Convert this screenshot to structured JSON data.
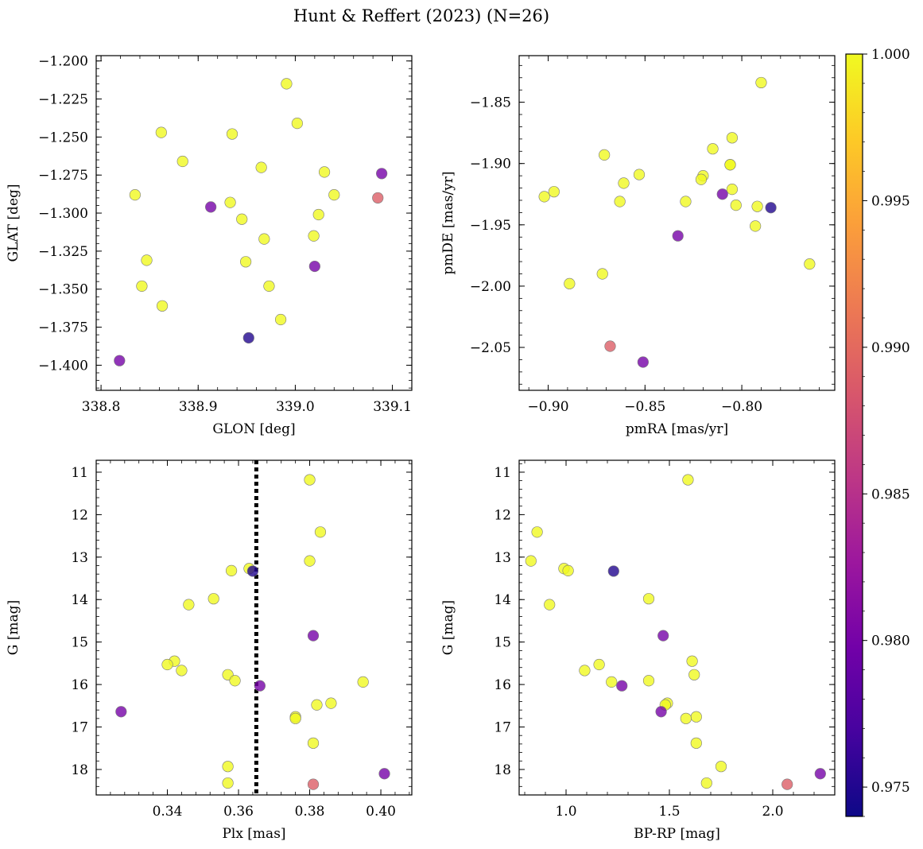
{
  "figure": {
    "title": "Hunt & Reffert (2023) (N=26)"
  },
  "colormap": [
    "#0d0887",
    "#46039f",
    "#7201a8",
    "#9c179e",
    "#bd3786",
    "#d8576b",
    "#ed7953",
    "#fb9f3a",
    "#fdca26",
    "#f0f921"
  ],
  "colorbar": {
    "min": 0.974,
    "max": 1.0,
    "ticks": [
      0.975,
      0.98,
      0.985,
      0.99,
      0.995,
      1.0
    ],
    "tick_labels": [
      "0.975",
      "0.980",
      "0.985",
      "0.990",
      "0.995",
      "1.000"
    ]
  },
  "chart_data": [
    {
      "type": "scatter",
      "xlabel": "GLON [deg]",
      "ylabel": "GLAT [deg]",
      "xlim": [
        338.795,
        339.12
      ],
      "ylim": [
        -1.4165,
        -1.1965
      ],
      "y_inverted": false,
      "xticks": [
        338.8,
        338.9,
        339.0,
        339.1
      ],
      "xtick_labels": [
        "338.8",
        "338.9",
        "339.0",
        "339.1"
      ],
      "yticks": [
        -1.2,
        -1.225,
        -1.25,
        -1.275,
        -1.3,
        -1.325,
        -1.35,
        -1.375,
        -1.4
      ],
      "ytick_labels": [
        "−1.200",
        "−1.225",
        "−1.250",
        "−1.275",
        "−1.300",
        "−1.325",
        "−1.350",
        "−1.375",
        "−1.400"
      ],
      "x": [
        338.991,
        339.002,
        338.862,
        338.935,
        338.884,
        338.965,
        339.03,
        339.089,
        338.835,
        339.04,
        338.913,
        339.085,
        338.933,
        339.024,
        338.945,
        338.968,
        339.019,
        338.847,
        338.949,
        339.02,
        338.842,
        338.973,
        338.863,
        338.985,
        338.952,
        338.819
      ],
      "y": [
        -1.215,
        -1.241,
        -1.247,
        -1.248,
        -1.266,
        -1.27,
        -1.273,
        -1.274,
        -1.288,
        -1.288,
        -1.296,
        -1.29,
        -1.293,
        -1.301,
        -1.304,
        -1.317,
        -1.315,
        -1.331,
        -1.332,
        -1.335,
        -1.348,
        -1.348,
        -1.361,
        -1.37,
        -1.382,
        -1.397
      ],
      "prob": [
        1.0,
        1.0,
        1.0,
        1.0,
        1.0,
        1.0,
        1.0,
        0.98,
        1.0,
        1.0,
        0.98,
        0.989,
        1.0,
        1.0,
        1.0,
        1.0,
        1.0,
        1.0,
        1.0,
        0.98,
        1.0,
        1.0,
        1.0,
        1.0,
        0.975,
        0.98
      ]
    },
    {
      "type": "scatter",
      "xlabel": "pmRA [mas/yr]",
      "ylabel": "pmDE [mas/yr]",
      "xlim": [
        -0.915,
        -0.752
      ],
      "ylim": [
        -2.085,
        -1.812
      ],
      "y_inverted": false,
      "xticks": [
        -0.9,
        -0.85,
        -0.8
      ],
      "xtick_labels": [
        "−0.90",
        "−0.85",
        "−0.80"
      ],
      "yticks": [
        -1.85,
        -1.9,
        -1.95,
        -2.0,
        -2.05
      ],
      "ytick_labels": [
        "−1.85",
        "−1.90",
        "−1.95",
        "−2.00",
        "−2.05"
      ],
      "x": [
        -0.79,
        -0.805,
        -0.815,
        -0.871,
        -0.806,
        -0.853,
        -0.82,
        -0.861,
        -0.897,
        -0.902,
        -0.805,
        -0.81,
        -0.821,
        -0.863,
        -0.829,
        -0.803,
        -0.792,
        -0.785,
        -0.793,
        -0.833,
        -0.765,
        -0.872,
        -0.889,
        -0.868,
        -0.851,
        -0.806
      ],
      "y": [
        -1.834,
        -1.879,
        -1.888,
        -1.893,
        -1.901,
        -1.909,
        -1.91,
        -1.916,
        -1.923,
        -1.927,
        -1.921,
        -1.925,
        -1.913,
        -1.931,
        -1.931,
        -1.934,
        -1.935,
        -1.936,
        -1.951,
        -1.959,
        -1.982,
        -1.99,
        -1.998,
        -2.049,
        -2.062,
        -1.901
      ],
      "prob": [
        1.0,
        1.0,
        1.0,
        1.0,
        1.0,
        1.0,
        1.0,
        1.0,
        1.0,
        1.0,
        1.0,
        0.98,
        1.0,
        1.0,
        1.0,
        1.0,
        1.0,
        0.975,
        1.0,
        0.98,
        1.0,
        1.0,
        1.0,
        0.989,
        0.98,
        1.0
      ]
    },
    {
      "type": "scatter",
      "xlabel": "Plx [mas]",
      "ylabel": "G [mag]",
      "xlim": [
        0.32,
        0.4087
      ],
      "ylim": [
        10.72,
        18.6
      ],
      "y_inverted": true,
      "xticks": [
        0.34,
        0.36,
        0.38,
        0.4
      ],
      "xtick_labels": [
        "0.34",
        "0.36",
        "0.38",
        "0.40"
      ],
      "yticks": [
        11,
        12,
        13,
        14,
        15,
        16,
        17,
        18
      ],
      "ytick_labels": [
        "11",
        "12",
        "13",
        "14",
        "15",
        "16",
        "17",
        "18"
      ],
      "vline": 0.365,
      "x": [
        0.38,
        0.383,
        0.363,
        0.358,
        0.38,
        0.364,
        0.353,
        0.346,
        0.381,
        0.342,
        0.34,
        0.344,
        0.395,
        0.357,
        0.359,
        0.366,
        0.386,
        0.382,
        0.376,
        0.376,
        0.327,
        0.381,
        0.357,
        0.401,
        0.357,
        0.381
      ],
      "y": [
        11.18,
        12.41,
        13.27,
        13.32,
        13.09,
        13.33,
        13.98,
        14.12,
        14.85,
        15.45,
        15.53,
        15.67,
        15.94,
        15.77,
        15.91,
        16.03,
        16.44,
        16.48,
        16.76,
        16.8,
        16.64,
        17.38,
        17.93,
        18.1,
        18.32,
        18.35
      ],
      "prob": [
        1.0,
        1.0,
        1.0,
        1.0,
        1.0,
        0.975,
        1.0,
        1.0,
        0.98,
        1.0,
        1.0,
        1.0,
        1.0,
        1.0,
        1.0,
        0.98,
        1.0,
        1.0,
        1.0,
        1.0,
        0.98,
        1.0,
        1.0,
        0.98,
        1.0,
        0.989
      ]
    },
    {
      "type": "scatter",
      "xlabel": "BP-RP [mag]",
      "ylabel": "G [mag]",
      "xlim": [
        0.773,
        2.3
      ],
      "ylim": [
        10.72,
        18.6
      ],
      "y_inverted": true,
      "xticks": [
        1.0,
        1.5,
        2.0
      ],
      "xtick_labels": [
        "1.0",
        "1.5",
        "2.0"
      ],
      "yticks": [
        11,
        12,
        13,
        14,
        15,
        16,
        17,
        18
      ],
      "ytick_labels": [
        "11",
        "12",
        "13",
        "14",
        "15",
        "16",
        "17",
        "18"
      ],
      "x": [
        1.59,
        0.86,
        0.83,
        0.99,
        1.01,
        1.23,
        1.4,
        0.92,
        1.47,
        1.61,
        1.16,
        1.09,
        1.22,
        1.62,
        1.4,
        1.27,
        1.49,
        1.48,
        1.63,
        1.58,
        1.46,
        1.63,
        1.75,
        2.23,
        1.68,
        2.07
      ],
      "y": [
        11.18,
        12.41,
        13.09,
        13.27,
        13.32,
        13.33,
        13.98,
        14.12,
        14.85,
        15.45,
        15.53,
        15.67,
        15.94,
        15.77,
        15.91,
        16.03,
        16.44,
        16.48,
        16.76,
        16.8,
        16.64,
        17.38,
        17.93,
        18.1,
        18.32,
        18.35
      ],
      "prob": [
        1.0,
        1.0,
        1.0,
        1.0,
        1.0,
        0.975,
        1.0,
        1.0,
        0.98,
        1.0,
        1.0,
        1.0,
        1.0,
        1.0,
        1.0,
        0.98,
        1.0,
        1.0,
        1.0,
        1.0,
        0.98,
        1.0,
        1.0,
        0.98,
        1.0,
        0.989
      ]
    }
  ]
}
